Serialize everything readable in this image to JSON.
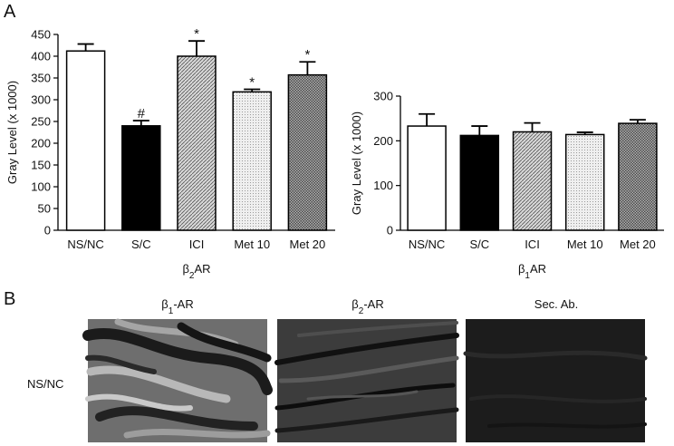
{
  "panel_labels": {
    "a": "A",
    "b": "B"
  },
  "chart_data": [
    {
      "type": "bar",
      "categories": [
        "NS/NC",
        "S/C",
        "ICI",
        "Met 10",
        "Met 20"
      ],
      "values": [
        412,
        240,
        400,
        318,
        357
      ],
      "errors": [
        16,
        12,
        35,
        6,
        30
      ],
      "significance": [
        "",
        "#",
        "*",
        "*",
        "*"
      ],
      "ylabel": "Gray Level (x 1000)",
      "xlabel": {
        "base": "β",
        "sub": "2",
        "rest": "AR"
      },
      "ylim": [
        0,
        450
      ],
      "yticks": [
        0,
        50,
        100,
        150,
        200,
        250,
        300,
        350,
        400,
        450
      ],
      "grid": false,
      "bar_fills": [
        "white",
        "black",
        "dense-diagonal",
        "light-dots",
        "dark-checker"
      ]
    },
    {
      "type": "bar",
      "categories": [
        "NS/NC",
        "S/C",
        "ICI",
        "Met 10",
        "Met 20"
      ],
      "values": [
        233,
        212,
        220,
        214,
        239
      ],
      "errors": [
        27,
        21,
        20,
        5,
        8
      ],
      "significance": [
        "",
        "",
        "",
        "",
        ""
      ],
      "ylabel": "Gray Level (x 1000)",
      "xlabel": {
        "base": "β",
        "sub": "1",
        "rest": "AR"
      },
      "ylim": [
        0,
        300
      ],
      "yticks": [
        0,
        100,
        200,
        300
      ],
      "grid": false,
      "bar_fills": [
        "white",
        "black",
        "dense-diagonal",
        "light-dots",
        "dark-checker"
      ]
    }
  ],
  "micrographs": {
    "row_label": "NS/NC",
    "columns": [
      {
        "base": "β",
        "sub": "1",
        "rest": "-AR",
        "tone": "bright"
      },
      {
        "base": "β",
        "sub": "2",
        "rest": "-AR",
        "tone": "medium"
      },
      {
        "base": "",
        "sub": "",
        "rest": "Sec. Ab.",
        "tone": "dark"
      }
    ]
  }
}
